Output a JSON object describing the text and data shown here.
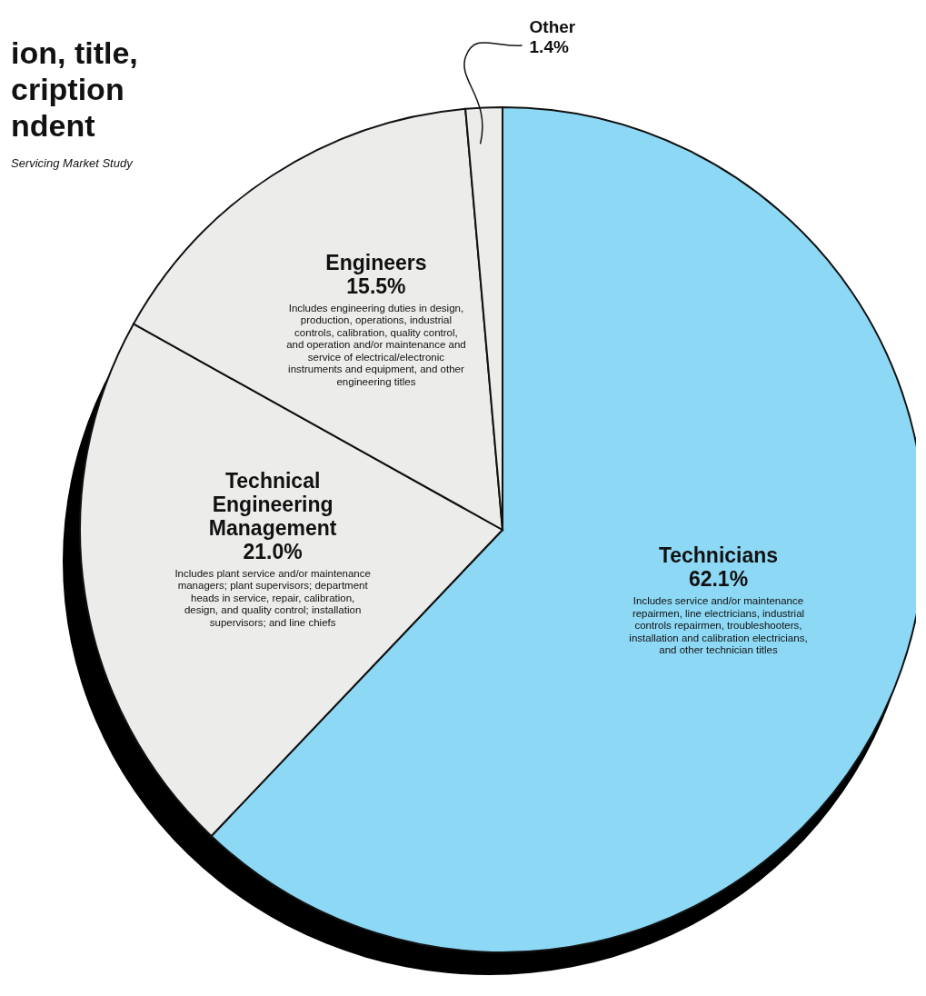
{
  "chart_data": {
    "type": "pie",
    "title": "ion, title, cription ndent",
    "subtitle": "Servicing Market Study",
    "categories": [
      "Technicians",
      "Technical Engineering Management",
      "Engineers",
      "Other"
    ],
    "values": [
      62.1,
      21.0,
      15.5,
      1.4
    ],
    "value_labels": [
      "62.1%",
      "21.0%",
      "15.5%",
      "1.4%"
    ],
    "colors": [
      "#8dd8f4",
      "#ececea",
      "#ececea",
      "#ececea"
    ],
    "annotations": [
      "Includes service and/or maintenance repairmen, line electricians, industrial controls repairmen, troubleshooters, installation and calibration electricians, and other technician titles",
      "Includes plant service and/or maintenance managers; plant supervisors; department heads in service, repair, calibration, design, and quality control; installation supervisors; and line chiefs",
      "Includes engineering duties in design, production, operations, industrial controls, calibration, quality control, and operation and/or maintenance and service of electrical/electronic instruments and equipment, and other engineering titles"
    ],
    "legend": false
  }
}
